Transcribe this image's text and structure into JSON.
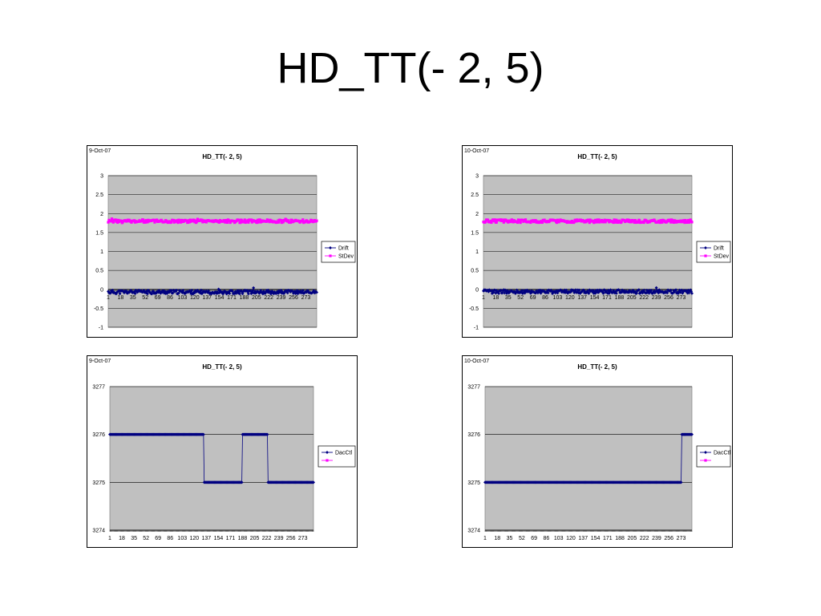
{
  "slide": {
    "title": "HD_TT(- 2, 5)"
  },
  "chart_data": [
    {
      "type": "line",
      "date": "9-Oct-07",
      "title": "HD_TT(- 2, 5)",
      "xlabel": "",
      "ylabel": "",
      "ylim": [
        -1,
        3
      ],
      "yticks": [
        -1,
        -0.5,
        0,
        0.5,
        1,
        1.5,
        2,
        2.5,
        3
      ],
      "ytick_labels": [
        "-1",
        "-0.5",
        "0",
        "0.5",
        "1",
        "1.5",
        "2",
        "2.5",
        "3"
      ],
      "xtick_labels": [
        "1",
        "18",
        "35",
        "52",
        "69",
        "86",
        "103",
        "120",
        "137",
        "154",
        "171",
        "188",
        "205",
        "222",
        "239",
        "256",
        "273"
      ],
      "x_range": [
        1,
        288
      ],
      "grid": true,
      "legend_position": "right",
      "series": [
        {
          "name": "Drift",
          "color": "#000080",
          "marker": "diamond",
          "baseline": -0.07,
          "noise": 0.05,
          "seed": 11
        },
        {
          "name": "StDev",
          "color": "#ff00ff",
          "marker": "square",
          "baseline": 1.8,
          "noise": 0.04,
          "seed": 23
        }
      ]
    },
    {
      "type": "line",
      "date": "10-Oct-07",
      "title": "HD_TT(- 2, 5)",
      "xlabel": "",
      "ylabel": "",
      "ylim": [
        -1,
        3
      ],
      "yticks": [
        -1,
        -0.5,
        0,
        0.5,
        1,
        1.5,
        2,
        2.5,
        3
      ],
      "ytick_labels": [
        "-1",
        "-0.5",
        "0",
        "0.5",
        "1",
        "1.5",
        "2",
        "2.5",
        "3"
      ],
      "xtick_labels": [
        "1",
        "18",
        "35",
        "52",
        "69",
        "86",
        "103",
        "120",
        "137",
        "154",
        "171",
        "188",
        "205",
        "222",
        "239",
        "256",
        "273"
      ],
      "x_range": [
        1,
        288
      ],
      "grid": true,
      "legend_position": "right",
      "series": [
        {
          "name": "Drift",
          "color": "#000080",
          "marker": "diamond",
          "baseline": -0.06,
          "noise": 0.05,
          "seed": 37
        },
        {
          "name": "StDev",
          "color": "#ff00ff",
          "marker": "square",
          "baseline": 1.8,
          "noise": 0.04,
          "seed": 51
        }
      ]
    },
    {
      "type": "line",
      "date": "9-Oct-07",
      "title": "HD_TT(- 2, 5)",
      "xlabel": "",
      "ylabel": "",
      "ylim": [
        3274,
        3277
      ],
      "yticks": [
        3274,
        3275,
        3276,
        3277
      ],
      "ytick_labels": [
        "3274",
        "3275",
        "3276",
        "3277"
      ],
      "xtick_labels": [
        "1",
        "18",
        "35",
        "52",
        "69",
        "86",
        "103",
        "120",
        "137",
        "154",
        "171",
        "188",
        "205",
        "222",
        "239",
        "256",
        "273"
      ],
      "x_range": [
        1,
        288
      ],
      "grid": true,
      "legend_position": "right",
      "series": [
        {
          "name": "DacCtl",
          "color": "#000080",
          "marker": "diamond",
          "steps": [
            [
              1,
              3276
            ],
            [
              134,
              3275
            ],
            [
              188,
              3276
            ],
            [
              224,
              3275
            ]
          ]
        },
        {
          "name": "",
          "color": "#ff00ff",
          "marker": "square"
        }
      ]
    },
    {
      "type": "line",
      "date": "10-Oct-07",
      "title": "HD_TT(- 2, 5)",
      "xlabel": "",
      "ylabel": "",
      "ylim": [
        3274,
        3277
      ],
      "yticks": [
        3274,
        3275,
        3276,
        3277
      ],
      "ytick_labels": [
        "3274",
        "3275",
        "3276",
        "3277"
      ],
      "xtick_labels": [
        "1",
        "18",
        "35",
        "52",
        "69",
        "86",
        "103",
        "120",
        "137",
        "154",
        "171",
        "188",
        "205",
        "222",
        "239",
        "256",
        "273"
      ],
      "x_range": [
        1,
        288
      ],
      "grid": true,
      "legend_position": "right",
      "series": [
        {
          "name": "DacCtl",
          "color": "#000080",
          "marker": "diamond",
          "steps": [
            [
              1,
              3275
            ],
            [
              274,
              3276
            ]
          ]
        },
        {
          "name": "",
          "color": "#ff00ff",
          "marker": "square"
        }
      ]
    }
  ]
}
